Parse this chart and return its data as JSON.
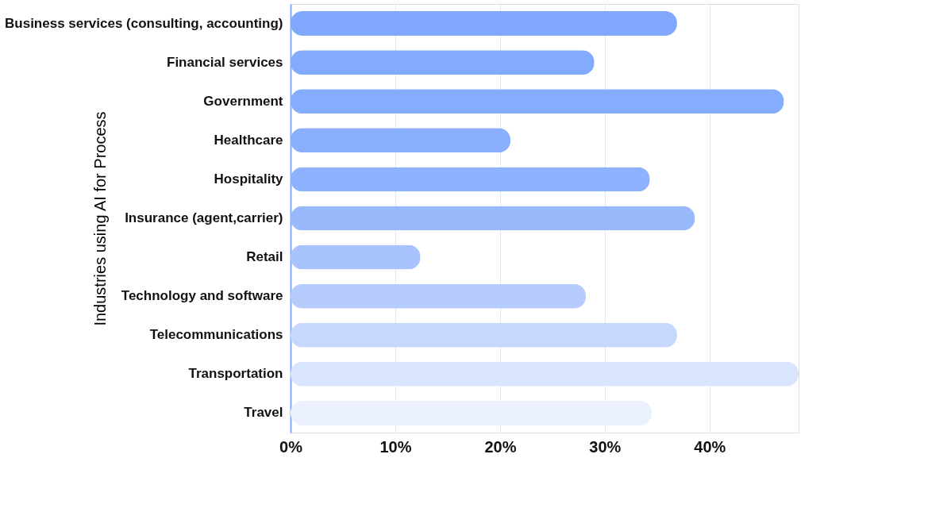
{
  "chart_data": {
    "type": "bar",
    "orientation": "horizontal",
    "ylabel": "Industries using AI for Process",
    "categories": [
      "Business services (consulting, accounting)",
      "Financial services",
      "Government",
      "Healthcare",
      "Hospitality",
      "Insurance (agent,carrier)",
      "Retail",
      "Technology and software",
      "Telecommunications",
      "Transportation",
      "Travel"
    ],
    "values": [
      36.9,
      29.0,
      47.1,
      21.0,
      34.3,
      38.6,
      12.4,
      28.2,
      36.9,
      48.5,
      34.5
    ],
    "colors": [
      "#80a9fd",
      "#83abfd",
      "#86adfd",
      "#89affd",
      "#8eb2fd",
      "#9ab9fd",
      "#a8c3fd",
      "#b6ccfd",
      "#c7d8fe",
      "#d9e4fe",
      "#ebf1fe"
    ],
    "xlim": [
      0,
      48.5
    ],
    "xticks": [
      {
        "value": 0,
        "label": "0%"
      },
      {
        "value": 10,
        "label": "10%"
      },
      {
        "value": 20,
        "label": "20%"
      },
      {
        "value": 30,
        "label": "30%"
      },
      {
        "value": 40,
        "label": "40%"
      }
    ],
    "grid": "x"
  }
}
